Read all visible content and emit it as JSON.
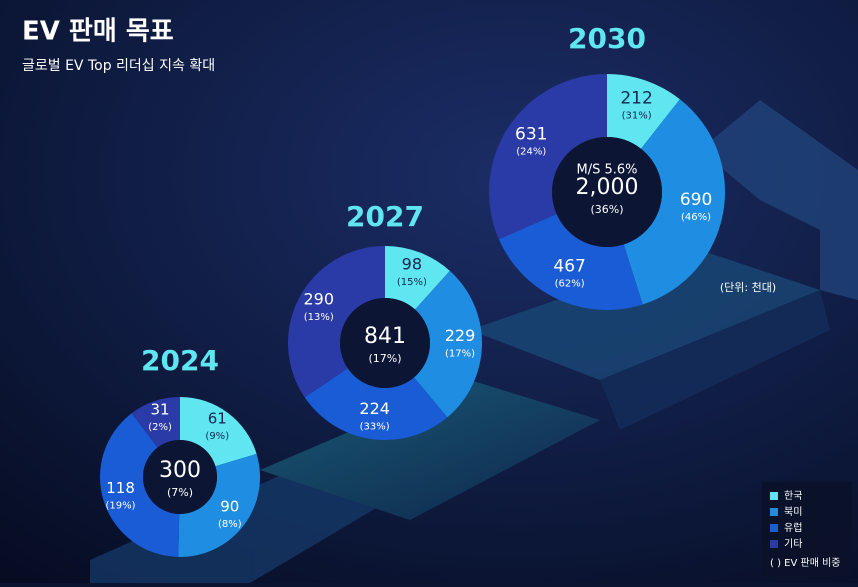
{
  "title": "EV 판매 목표",
  "subtitle": "글로벌 EV Top 리더십 지속 확대",
  "unit_note": "(단위: 천대)",
  "legend": {
    "categories": [
      "한국",
      "북미",
      "유럽",
      "기타"
    ],
    "colors": [
      "#5fe6f0",
      "#1f8ee2",
      "#1a5cd6",
      "#2a3aa6"
    ],
    "note": "( ) EV 판매 비중"
  },
  "chart_data": [
    {
      "type": "donut",
      "title": "2024",
      "values": [
        61,
        90,
        118,
        31
      ],
      "share_labels": [
        "(9%)",
        "(8%)",
        "(19%)",
        "(2%)"
      ],
      "total": 300,
      "total_share_label": "(7%)"
    },
    {
      "type": "donut",
      "title": "2027",
      "values": [
        98,
        229,
        224,
        290
      ],
      "share_labels": [
        "(15%)",
        "(17%)",
        "(33%)",
        "(13%)"
      ],
      "total": 841,
      "total_share_label": "(17%)"
    },
    {
      "type": "donut",
      "title": "2030",
      "values": [
        212,
        690,
        467,
        631
      ],
      "share_labels": [
        "(31%)",
        "(46%)",
        "(62%)",
        "(24%)"
      ],
      "total": {
        "value": 2000,
        "label": "2,000"
      },
      "total_share_label": "(36%)",
      "market_share_label": "M/S 5.6%"
    }
  ]
}
